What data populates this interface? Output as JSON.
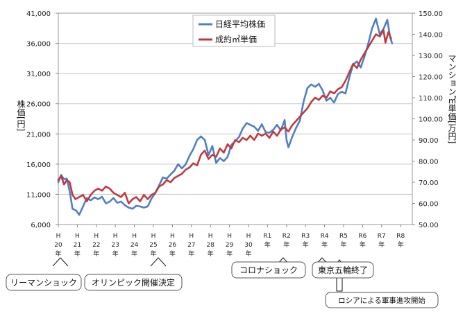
{
  "chart_data": {
    "type": "line",
    "left_axis": {
      "label": "株価[円]",
      "ticks": [
        "6,000",
        "11,000",
        "16,000",
        "21,000",
        "26,000",
        "31,000",
        "36,000",
        "41,000"
      ],
      "range": [
        6000,
        41000
      ]
    },
    "right_axis": {
      "label": "マンション㎡単価[万円]",
      "ticks": [
        "50.00",
        "60.00",
        "70.00",
        "80.00",
        "90.00",
        "100.00",
        "110.00",
        "120.00",
        "130.00",
        "140.00",
        "150.00"
      ],
      "range": [
        50,
        150
      ]
    },
    "x_ticks": [
      {
        "era": "H",
        "num": "20",
        "nen": "年"
      },
      {
        "era": "H",
        "num": "21",
        "nen": "年"
      },
      {
        "era": "H",
        "num": "22",
        "nen": "年"
      },
      {
        "era": "H",
        "num": "23",
        "nen": "年"
      },
      {
        "era": "H",
        "num": "24",
        "nen": "年"
      },
      {
        "era": "H",
        "num": "25",
        "nen": "年"
      },
      {
        "era": "H",
        "num": "26",
        "nen": "年"
      },
      {
        "era": "H",
        "num": "27",
        "nen": "年"
      },
      {
        "era": "H",
        "num": "28",
        "nen": "年"
      },
      {
        "era": "H",
        "num": "29",
        "nen": "年"
      },
      {
        "era": "H",
        "num": "30",
        "nen": "年"
      },
      {
        "era": "R1",
        "num": "",
        "nen": "年"
      },
      {
        "era": "R2",
        "num": "",
        "nen": "年"
      },
      {
        "era": "R3",
        "num": "",
        "nen": "年"
      },
      {
        "era": "R4",
        "num": "",
        "nen": "年"
      },
      {
        "era": "R5",
        "num": "",
        "nen": "年"
      },
      {
        "era": "R6",
        "num": "",
        "nen": "年"
      },
      {
        "era": "R7",
        "num": "",
        "nen": "年"
      },
      {
        "era": "R8",
        "num": "",
        "nen": "年"
      }
    ],
    "series": [
      {
        "name": "日経平均株価",
        "axis": "left",
        "color": "#4f7fc4",
        "points": [
          [
            0,
            13000
          ],
          [
            0.15,
            14200
          ],
          [
            0.3,
            13500
          ],
          [
            0.45,
            13600
          ],
          [
            0.6,
            11500
          ],
          [
            0.75,
            8600
          ],
          [
            0.95,
            8300
          ],
          [
            1.1,
            7600
          ],
          [
            1.3,
            9000
          ],
          [
            1.5,
            10400
          ],
          [
            1.7,
            10000
          ],
          [
            1.9,
            10500
          ],
          [
            2.1,
            10200
          ],
          [
            2.3,
            10600
          ],
          [
            2.5,
            9500
          ],
          [
            2.7,
            9800
          ],
          [
            2.9,
            10400
          ],
          [
            3.1,
            9600
          ],
          [
            3.3,
            9800
          ],
          [
            3.5,
            9200
          ],
          [
            3.7,
            8800
          ],
          [
            3.9,
            8600
          ],
          [
            4.1,
            9100
          ],
          [
            4.3,
            9000
          ],
          [
            4.5,
            8800
          ],
          [
            4.7,
            9000
          ],
          [
            4.9,
            10300
          ],
          [
            5.1,
            11200
          ],
          [
            5.3,
            12500
          ],
          [
            5.5,
            13800
          ],
          [
            5.7,
            13600
          ],
          [
            5.9,
            14300
          ],
          [
            6.1,
            14900
          ],
          [
            6.3,
            16000
          ],
          [
            6.5,
            15300
          ],
          [
            6.7,
            16000
          ],
          [
            6.9,
            17400
          ],
          [
            7.1,
            18500
          ],
          [
            7.3,
            20000
          ],
          [
            7.5,
            20600
          ],
          [
            7.7,
            20000
          ],
          [
            7.9,
            17500
          ],
          [
            8.1,
            19000
          ],
          [
            8.3,
            16200
          ],
          [
            8.5,
            17000
          ],
          [
            8.7,
            16500
          ],
          [
            8.9,
            17200
          ],
          [
            9.1,
            19200
          ],
          [
            9.3,
            19800
          ],
          [
            9.5,
            20500
          ],
          [
            9.7,
            21900
          ],
          [
            9.9,
            22800
          ],
          [
            10.1,
            22500
          ],
          [
            10.3,
            22200
          ],
          [
            10.5,
            21500
          ],
          [
            10.7,
            22600
          ],
          [
            10.9,
            21300
          ],
          [
            11.1,
            21200
          ],
          [
            11.3,
            21700
          ],
          [
            11.5,
            22500
          ],
          [
            11.7,
            21600
          ],
          [
            11.9,
            23300
          ],
          [
            12.0,
            20000
          ],
          [
            12.1,
            18800
          ],
          [
            12.3,
            20500
          ],
          [
            12.5,
            22000
          ],
          [
            12.7,
            23200
          ],
          [
            12.9,
            26400
          ],
          [
            13.1,
            28600
          ],
          [
            13.3,
            29200
          ],
          [
            13.5,
            28800
          ],
          [
            13.7,
            29300
          ],
          [
            13.9,
            28200
          ],
          [
            14.1,
            26500
          ],
          [
            14.3,
            27000
          ],
          [
            14.5,
            26200
          ],
          [
            14.7,
            27600
          ],
          [
            14.9,
            28000
          ],
          [
            15.1,
            27700
          ],
          [
            15.3,
            30300
          ],
          [
            15.5,
            32500
          ],
          [
            15.7,
            33000
          ],
          [
            15.9,
            32000
          ],
          [
            16.1,
            33800
          ],
          [
            16.3,
            36000
          ],
          [
            16.5,
            38500
          ],
          [
            16.7,
            40100
          ],
          [
            16.9,
            37500
          ],
          [
            17.1,
            38400
          ],
          [
            17.3,
            39900
          ],
          [
            17.45,
            37000
          ],
          [
            17.55,
            36000
          ]
        ]
      },
      {
        "name": "成約㎡単価",
        "axis": "right",
        "color": "#c0393f",
        "points": [
          [
            0,
            71
          ],
          [
            0.15,
            73
          ],
          [
            0.3,
            69
          ],
          [
            0.45,
            71
          ],
          [
            0.6,
            70
          ],
          [
            0.75,
            64
          ],
          [
            0.9,
            62
          ],
          [
            1.1,
            63
          ],
          [
            1.3,
            64
          ],
          [
            1.5,
            61
          ],
          [
            1.7,
            64
          ],
          [
            1.9,
            66
          ],
          [
            2.1,
            67
          ],
          [
            2.3,
            66
          ],
          [
            2.5,
            68
          ],
          [
            2.7,
            67
          ],
          [
            2.9,
            65
          ],
          [
            3.1,
            64
          ],
          [
            3.3,
            63
          ],
          [
            3.5,
            65
          ],
          [
            3.7,
            60
          ],
          [
            3.9,
            62
          ],
          [
            4.1,
            63
          ],
          [
            4.3,
            61
          ],
          [
            4.5,
            64
          ],
          [
            4.7,
            62
          ],
          [
            4.9,
            64
          ],
          [
            5.1,
            65
          ],
          [
            5.3,
            68
          ],
          [
            5.5,
            69
          ],
          [
            5.7,
            71
          ],
          [
            5.9,
            70
          ],
          [
            6.1,
            72
          ],
          [
            6.3,
            73
          ],
          [
            6.5,
            74
          ],
          [
            6.7,
            76
          ],
          [
            6.9,
            77
          ],
          [
            7.1,
            79
          ],
          [
            7.3,
            78
          ],
          [
            7.5,
            83
          ],
          [
            7.7,
            85
          ],
          [
            7.9,
            81
          ],
          [
            8.1,
            83
          ],
          [
            8.3,
            82
          ],
          [
            8.5,
            86
          ],
          [
            8.7,
            84
          ],
          [
            8.9,
            88
          ],
          [
            9.1,
            86
          ],
          [
            9.3,
            90
          ],
          [
            9.5,
            89
          ],
          [
            9.7,
            91
          ],
          [
            9.9,
            90
          ],
          [
            10.1,
            92
          ],
          [
            10.3,
            90
          ],
          [
            10.5,
            93
          ],
          [
            10.7,
            92
          ],
          [
            10.9,
            93
          ],
          [
            11.1,
            91
          ],
          [
            11.3,
            94
          ],
          [
            11.5,
            92
          ],
          [
            11.7,
            95
          ],
          [
            11.9,
            96
          ],
          [
            12.1,
            94
          ],
          [
            12.3,
            97
          ],
          [
            12.5,
            99
          ],
          [
            12.7,
            101
          ],
          [
            12.9,
            103
          ],
          [
            13.1,
            105
          ],
          [
            13.3,
            108
          ],
          [
            13.5,
            110
          ],
          [
            13.7,
            109
          ],
          [
            13.9,
            111
          ],
          [
            14.1,
            110
          ],
          [
            14.3,
            113
          ],
          [
            14.5,
            112
          ],
          [
            14.7,
            114
          ],
          [
            14.9,
            115
          ],
          [
            15.1,
            118
          ],
          [
            15.3,
            122
          ],
          [
            15.5,
            126
          ],
          [
            15.7,
            124
          ],
          [
            15.9,
            128
          ],
          [
            16.1,
            131
          ],
          [
            16.3,
            134
          ],
          [
            16.5,
            137
          ],
          [
            16.7,
            140
          ],
          [
            16.9,
            139
          ],
          [
            17.1,
            142
          ],
          [
            17.2,
            136
          ],
          [
            17.35,
            141
          ],
          [
            17.5,
            138
          ]
        ]
      }
    ]
  },
  "legend": [
    "日経平均株価",
    "成約㎡単価"
  ],
  "callouts": {
    "lehman": "リーマンショック",
    "olympic": "オリンピック開催決定",
    "corona": "コロナショック",
    "tokyo": "東京五輪終了",
    "russia": "ロシアによる軍事進攻開始"
  }
}
